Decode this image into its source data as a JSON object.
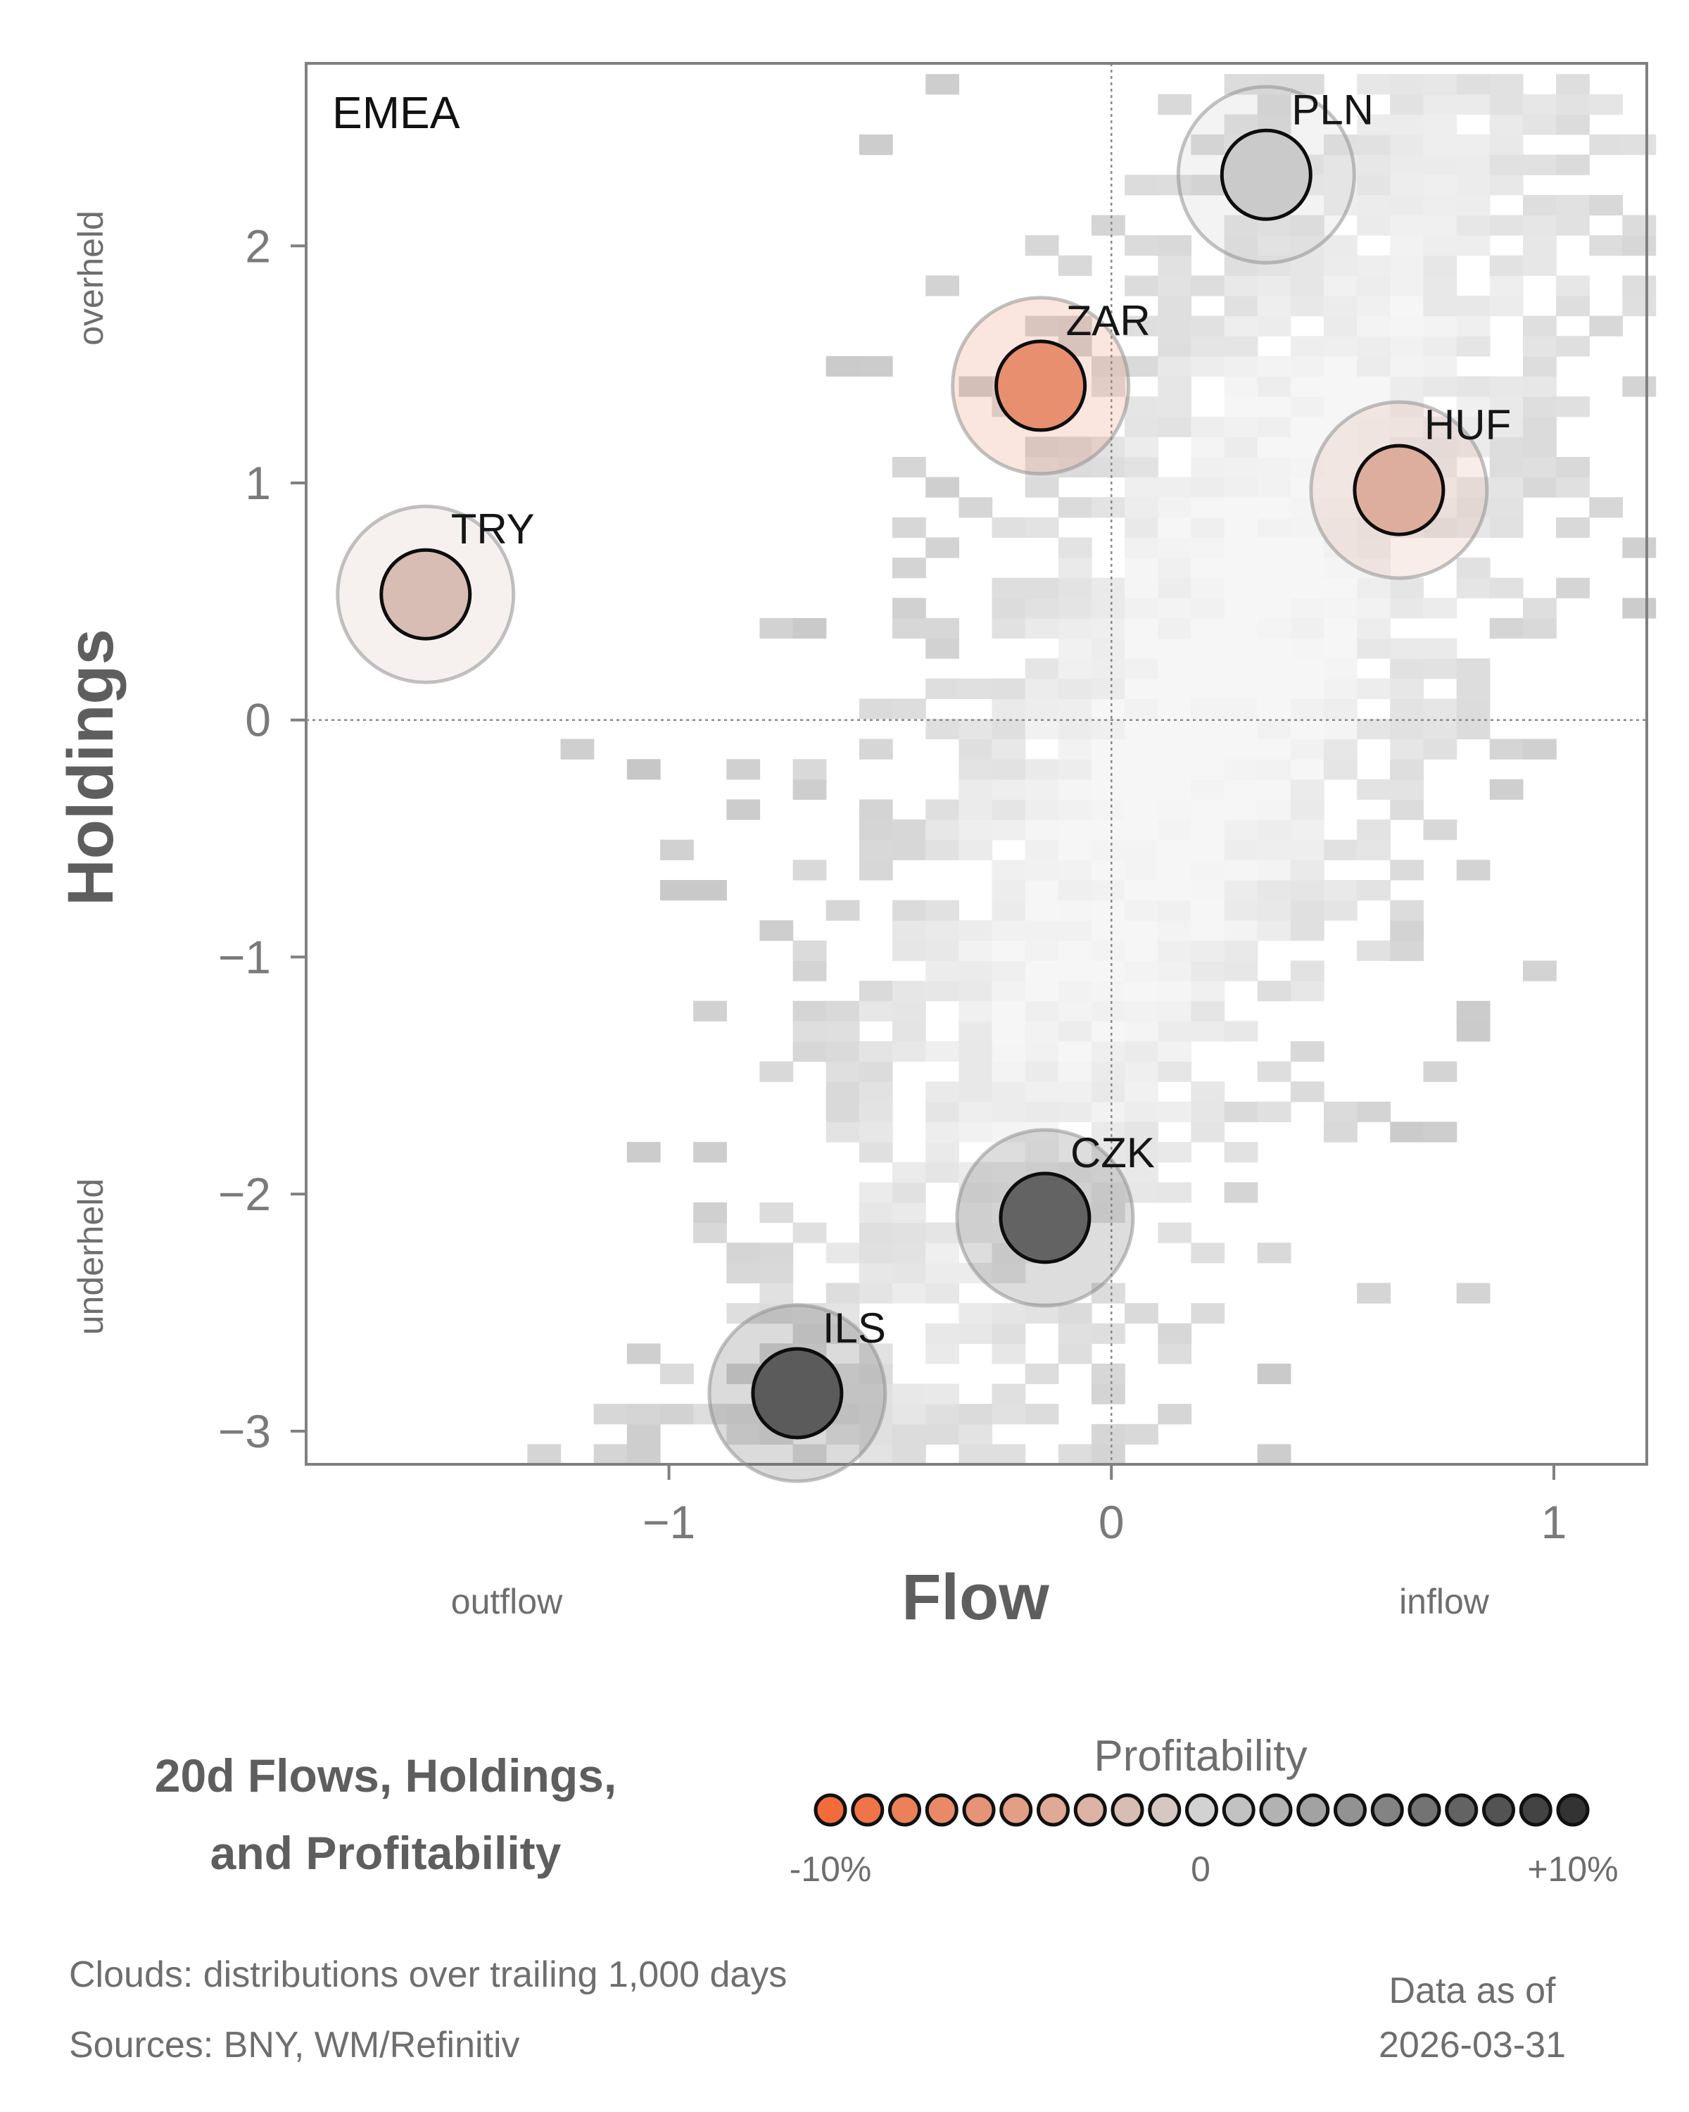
{
  "chart_data": {
    "type": "scatter",
    "panel_label": "EMEA",
    "xlabel": "Flow",
    "ylabel": "Holdings",
    "x_hints": [
      "outflow",
      "inflow"
    ],
    "y_hints": [
      "overheld",
      "underheld"
    ],
    "xlim": [
      -1.82,
      1.21
    ],
    "ylim": [
      -3.14,
      2.77
    ],
    "x_ticks": [
      -1,
      0,
      1
    ],
    "x_tick_labels": [
      "−1",
      "0",
      "1"
    ],
    "y_ticks": [
      -3,
      -2,
      -1,
      0,
      1,
      2
    ],
    "y_tick_labels": [
      "−3",
      "−2",
      "−1",
      "0",
      "1",
      "2"
    ],
    "reference_lines": {
      "x": 0,
      "y": 0
    },
    "points": [
      {
        "label": "PLN",
        "flow": 0.35,
        "holdings": 2.3,
        "profitability": 0.5
      },
      {
        "label": "ZAR",
        "flow": -0.16,
        "holdings": 1.41,
        "profitability": -6.5
      },
      {
        "label": "HUF",
        "flow": 0.65,
        "holdings": 0.97,
        "profitability": -3.5
      },
      {
        "label": "TRY",
        "flow": -1.55,
        "holdings": 0.53,
        "profitability": -2.0
      },
      {
        "label": "CZK",
        "flow": -0.15,
        "holdings": -2.1,
        "profitability": 7.0
      },
      {
        "label": "ILS",
        "flow": -0.71,
        "holdings": -2.84,
        "profitability": 7.5
      }
    ],
    "background": "heatmap cloud: distribution over trailing 1,000 days",
    "colorbar": {
      "title": "Profitability",
      "min_label": "-10%",
      "mid_label": "0",
      "max_label": "+10%",
      "min": -10,
      "max": 10,
      "low_color": "#f26b3a",
      "mid_color": "#d2d2d2",
      "high_color": "#333333",
      "swatches": 21
    },
    "grid": false
  },
  "title_lines": [
    "20d Flows, Holdings,",
    "and Profitability"
  ],
  "footnotes": {
    "clouds": "Clouds:  distributions over trailing 1,000 days",
    "sources": "Sources:  BNY, WM/Refinitiv"
  },
  "as_of": {
    "label": "Data as of",
    "date": "2026-03-31"
  }
}
